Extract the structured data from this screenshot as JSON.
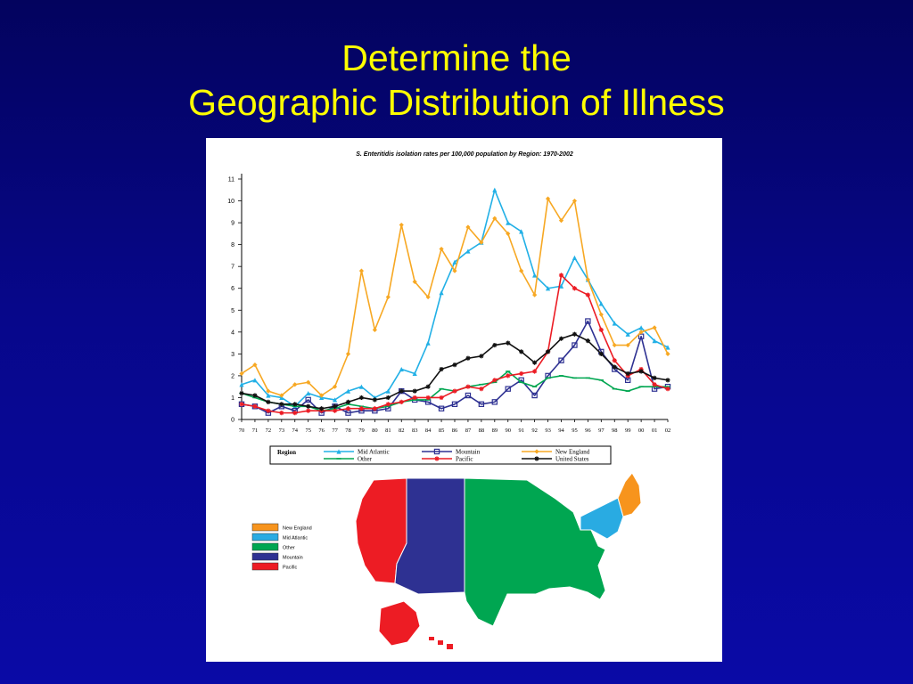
{
  "slide": {
    "title_line1": "Determine the",
    "title_line2": "Geographic Distribution of Illness"
  },
  "chart_data": {
    "type": "line",
    "title": "S. Enteritidis isolation rates per 100,000 population by Region: 1970-2002",
    "xlabel": "",
    "ylabel": "",
    "ylim": [
      0,
      11
    ],
    "yticks": [
      0,
      1,
      2,
      3,
      4,
      5,
      6,
      7,
      8,
      9,
      10,
      11
    ],
    "grid": false,
    "legend_position": "bottom",
    "legend_title": "Region",
    "categories": [
      "70",
      "71",
      "72",
      "73",
      "74",
      "75",
      "76",
      "77",
      "78",
      "79",
      "80",
      "81",
      "82",
      "83",
      "84",
      "85",
      "86",
      "87",
      "88",
      "89",
      "90",
      "91",
      "92",
      "93",
      "94",
      "95",
      "96",
      "97",
      "98",
      "99",
      "00",
      "01",
      "02"
    ],
    "series": [
      {
        "name": "Mid Atlantic",
        "color": "#22b0e6",
        "marker": "triangle",
        "values": [
          1.6,
          1.8,
          1.1,
          1.0,
          0.6,
          1.2,
          1.0,
          0.9,
          1.3,
          1.5,
          1.0,
          1.3,
          2.3,
          2.1,
          3.5,
          5.8,
          7.2,
          7.7,
          8.1,
          10.5,
          9.0,
          8.6,
          6.6,
          6.0,
          6.1,
          7.4,
          6.4,
          5.3,
          4.4,
          3.9,
          4.2,
          3.6,
          3.3
        ]
      },
      {
        "name": "Mountain",
        "color": "#2e3192",
        "marker": "square",
        "values": [
          0.7,
          0.6,
          0.3,
          0.6,
          0.4,
          0.9,
          0.3,
          0.6,
          0.3,
          0.4,
          0.4,
          0.5,
          1.3,
          0.9,
          0.8,
          0.5,
          0.7,
          1.1,
          0.7,
          0.8,
          1.4,
          1.8,
          1.1,
          2.0,
          2.7,
          3.4,
          4.5,
          3.1,
          2.3,
          1.8,
          3.8,
          1.4,
          1.5
        ]
      },
      {
        "name": "New England",
        "color": "#f7a823",
        "marker": "diamond",
        "values": [
          2.1,
          2.5,
          1.3,
          1.1,
          1.6,
          1.7,
          1.1,
          1.5,
          3.0,
          6.8,
          4.1,
          5.6,
          8.9,
          6.3,
          5.6,
          7.8,
          6.8,
          8.8,
          8.1,
          9.2,
          8.5,
          6.8,
          5.7,
          10.1,
          9.1,
          10.0,
          6.4,
          4.8,
          3.4,
          3.4,
          4.0,
          4.2,
          3.0
        ]
      },
      {
        "name": "Other",
        "color": "#00a651",
        "marker": "dash",
        "values": [
          1.2,
          1.0,
          0.8,
          0.7,
          0.6,
          0.6,
          0.4,
          0.5,
          0.7,
          0.6,
          0.5,
          0.6,
          0.8,
          0.9,
          0.9,
          1.4,
          1.3,
          1.5,
          1.6,
          1.7,
          2.2,
          1.7,
          1.5,
          1.9,
          2.0,
          1.9,
          1.9,
          1.8,
          1.4,
          1.3,
          1.5,
          1.5,
          1.5
        ]
      },
      {
        "name": "Pacific",
        "color": "#ec1c24",
        "marker": "star",
        "values": [
          0.7,
          0.6,
          0.4,
          0.3,
          0.3,
          0.4,
          0.4,
          0.4,
          0.5,
          0.5,
          0.5,
          0.7,
          0.8,
          1.0,
          1.0,
          1.0,
          1.3,
          1.5,
          1.4,
          1.8,
          2.0,
          2.1,
          2.2,
          3.1,
          6.6,
          6.0,
          5.7,
          4.1,
          2.7,
          2.0,
          2.3,
          1.6,
          1.4
        ]
      },
      {
        "name": "United States",
        "color": "#111111",
        "marker": "star",
        "values": [
          1.2,
          1.1,
          0.8,
          0.7,
          0.7,
          0.6,
          0.5,
          0.6,
          0.8,
          1.0,
          0.9,
          1.0,
          1.3,
          1.3,
          1.5,
          2.3,
          2.5,
          2.8,
          2.9,
          3.4,
          3.5,
          3.1,
          2.6,
          3.1,
          3.7,
          3.9,
          3.6,
          3.0,
          2.4,
          2.1,
          2.2,
          1.9,
          1.8
        ]
      }
    ]
  },
  "map": {
    "legend": [
      {
        "label": "New England",
        "color": "#f7941d"
      },
      {
        "label": "Mid Atlantic",
        "color": "#29abe2"
      },
      {
        "label": "Other",
        "color": "#00a651"
      },
      {
        "label": "Mountain",
        "color": "#2e3192"
      },
      {
        "label": "Pacific",
        "color": "#ed1c24"
      }
    ]
  }
}
